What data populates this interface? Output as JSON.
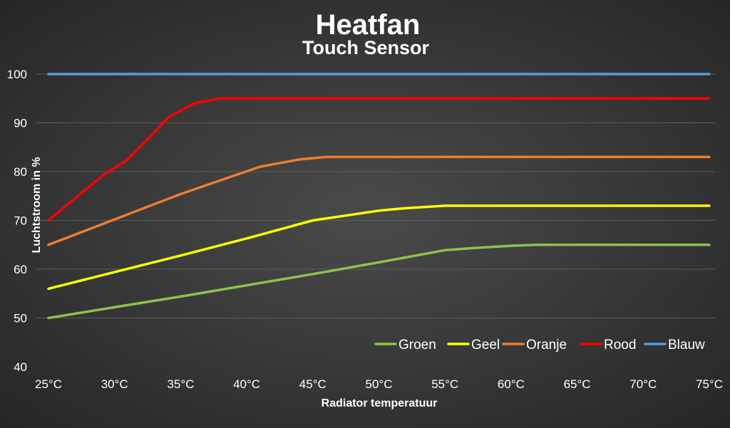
{
  "chart_data": {
    "type": "line",
    "title": "Heatfan",
    "subtitle": "Touch Sensor",
    "xlabel": "Radiator temperatuur",
    "ylabel": "Luchtstroom in %",
    "ylim": [
      40,
      100
    ],
    "xlim": [
      25,
      75
    ],
    "y_ticks": [
      "100",
      "90",
      "80",
      "70",
      "60",
      "50",
      "40"
    ],
    "x_ticks": [
      "25°C",
      "30°C",
      "35°C",
      "40°C",
      "45°C",
      "50°C",
      "55°C",
      "60°C",
      "65°C",
      "70°C",
      "75°C"
    ],
    "grid": true,
    "legend_position": "bottom-right",
    "series": [
      {
        "name": "Groen",
        "color": "#8BC34A",
        "x": [
          25,
          30,
          35,
          40,
          45,
          50,
          55,
          57,
          60,
          62,
          65,
          70,
          75
        ],
        "y": [
          50,
          52.2,
          54.4,
          56.7,
          59,
          61.4,
          63.9,
          64.3,
          64.8,
          65,
          65,
          65,
          65
        ]
      },
      {
        "name": "Geel",
        "color": "#FFFF00",
        "x": [
          25,
          30,
          35,
          40,
          45,
          48,
          50,
          52,
          55,
          60,
          65,
          70,
          75
        ],
        "y": [
          56,
          59.4,
          62.8,
          66.3,
          70,
          71.2,
          72,
          72.5,
          73,
          73,
          73,
          73,
          73
        ]
      },
      {
        "name": "Oranje",
        "color": "#ED7D31",
        "x": [
          25,
          30,
          35,
          41,
          44,
          46,
          50,
          55,
          60,
          65,
          70,
          75
        ],
        "y": [
          65,
          70.2,
          75.4,
          81,
          82.5,
          83,
          83,
          83,
          83,
          83,
          83,
          83
        ]
      },
      {
        "name": "Rood",
        "color": "#FF0000",
        "x": [
          25,
          27,
          29,
          31,
          33,
          34,
          35,
          36,
          38,
          40,
          45,
          50,
          55,
          60,
          65,
          70,
          75
        ],
        "y": [
          70,
          74.5,
          79,
          82.5,
          88,
          91,
          92.5,
          94,
          95,
          95,
          95,
          95,
          95,
          95,
          95,
          95,
          95
        ]
      },
      {
        "name": "Blauw",
        "color": "#5B9BD5",
        "x": [
          25,
          75
        ],
        "y": [
          100,
          100
        ]
      }
    ]
  }
}
